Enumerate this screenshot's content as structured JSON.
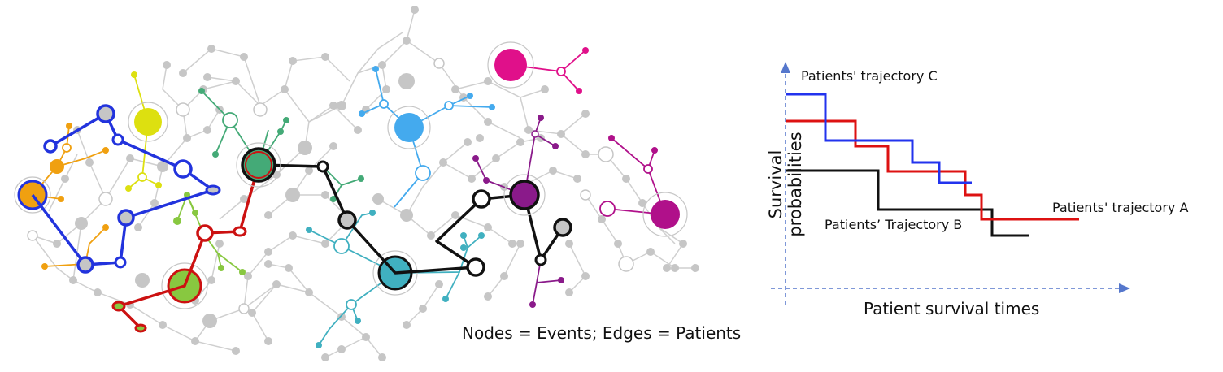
{
  "network": {
    "caption": "Nodes = Events; Edges = Patients",
    "colors": {
      "gray_edge": "#cfcfcf",
      "gray_node": "#c6c6c6",
      "blue": "#2233dd",
      "red": "#cc1111",
      "black": "#111111",
      "orange": "#f0a010",
      "yellow": "#dde010",
      "green": "#44aa77",
      "lime": "#88c840",
      "cyan": "#40b0c0",
      "sky": "#44aaee",
      "magenta": "#e0108a",
      "purple": "#8a1a8a",
      "violet": "#b0108a"
    }
  },
  "km_plot": {
    "type": "line",
    "ylabel": "Survival probabilities",
    "xlabel": "Patient survival times",
    "curves": [
      {
        "label": "Patients' trajectory C",
        "color": "#2233ee"
      },
      {
        "label": "Patients' trajectory A",
        "color": "#dd1111"
      },
      {
        "label": "Patients’ Trajectory B",
        "color": "#111111"
      }
    ],
    "axis_color": "#5577cc"
  }
}
